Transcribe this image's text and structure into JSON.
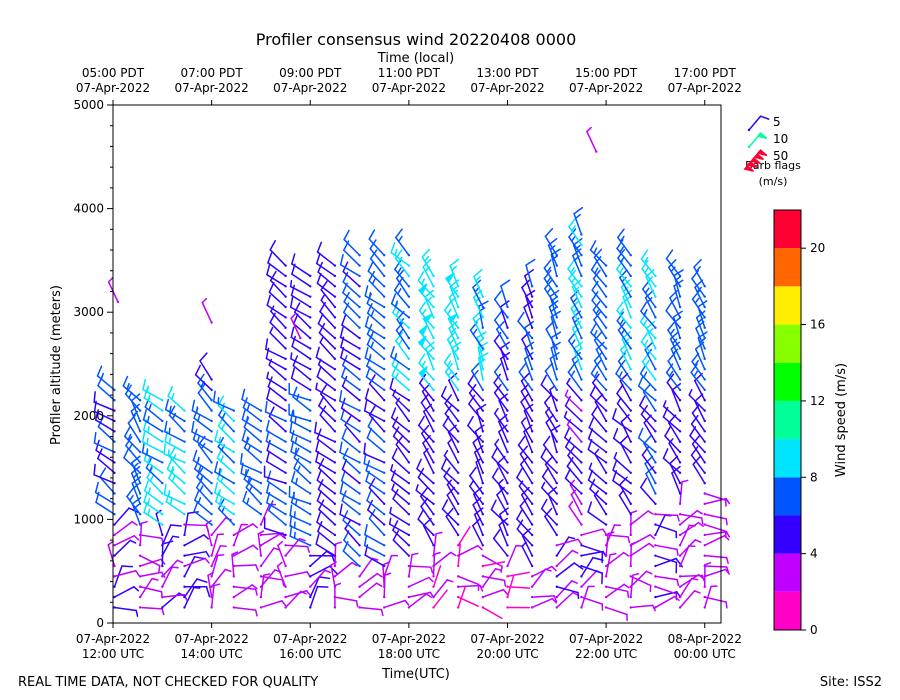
{
  "chart_data": {
    "type": "wind_barb_profile",
    "title": "Profiler consensus wind 20220408 0000",
    "top_axis_label": "Time (local)",
    "xlabel": "Time(UTC)",
    "ylabel": "Profiler altitude (meters)",
    "colorbar_label": "Wind speed (m/s)",
    "footer_left": "REAL TIME DATA, NOT CHECKED FOR QUALITY",
    "footer_right": "Site: ISS2",
    "x_hours": [
      12,
      14,
      16,
      18,
      20,
      22,
      24
    ],
    "x_range_hours": [
      12.0,
      24.33
    ],
    "bottom_ticks": [
      {
        "hour": 12,
        "line1": "07-Apr-2022",
        "line2": "12:00 UTC"
      },
      {
        "hour": 14,
        "line1": "07-Apr-2022",
        "line2": "14:00 UTC"
      },
      {
        "hour": 16,
        "line1": "07-Apr-2022",
        "line2": "16:00 UTC"
      },
      {
        "hour": 18,
        "line1": "07-Apr-2022",
        "line2": "18:00 UTC"
      },
      {
        "hour": 20,
        "line1": "07-Apr-2022",
        "line2": "20:00 UTC"
      },
      {
        "hour": 22,
        "line1": "07-Apr-2022",
        "line2": "22:00 UTC"
      },
      {
        "hour": 24,
        "line1": "08-Apr-2022",
        "line2": "00:00 UTC"
      }
    ],
    "top_ticks": [
      {
        "hour": 12,
        "line1": "05:00 PDT",
        "line2": "07-Apr-2022"
      },
      {
        "hour": 14,
        "line1": "07:00 PDT",
        "line2": "07-Apr-2022"
      },
      {
        "hour": 16,
        "line1": "09:00 PDT",
        "line2": "07-Apr-2022"
      },
      {
        "hour": 18,
        "line1": "11:00 PDT",
        "line2": "07-Apr-2022"
      },
      {
        "hour": 20,
        "line1": "13:00 PDT",
        "line2": "07-Apr-2022"
      },
      {
        "hour": 22,
        "line1": "15:00 PDT",
        "line2": "07-Apr-2022"
      },
      {
        "hour": 24,
        "line1": "17:00 PDT",
        "line2": "07-Apr-2022"
      }
    ],
    "y_ticks": [
      0,
      1000,
      2000,
      3000,
      4000,
      5000
    ],
    "ylim": [
      0,
      5000
    ],
    "colorbar_ticks": [
      0,
      4,
      8,
      12,
      16,
      20
    ],
    "colorbar_range": [
      0,
      22
    ],
    "colorbar_colors": [
      "#ff00c8",
      "#c000ff",
      "#3300ff",
      "#0055ff",
      "#00e5ff",
      "#00ff99",
      "#00ff00",
      "#88ff00",
      "#ffee00",
      "#ff6600",
      "#ff0033"
    ],
    "legend": {
      "entries": [
        {
          "speed": 5,
          "label": "5",
          "color": "#3300ff"
        },
        {
          "speed": 10,
          "label": "10",
          "color": "#00ff99"
        },
        {
          "speed": 50,
          "label": "50",
          "color": "#ff0033"
        }
      ],
      "caption1": "Barb flags",
      "caption2": "(m/s)"
    },
    "profiles": [
      {
        "t": 12.03,
        "top": 2300,
        "calm": 1000,
        "low": 4,
        "mid": 6,
        "up": 8,
        "dir": 300
      },
      {
        "t": 12.55,
        "top": 2150,
        "calm": 900,
        "low": 3,
        "mid": 7,
        "up": 6,
        "dir": 320
      },
      {
        "t": 13.0,
        "top": 2150,
        "calm": 900,
        "low": 4,
        "mid": 8,
        "up": 6,
        "dir": 300
      },
      {
        "t": 13.45,
        "top": 2100,
        "calm": 1000,
        "low": 4,
        "mid": 8,
        "up": 6,
        "dir": 300
      },
      {
        "t": 14.0,
        "top": 2350,
        "calm": 900,
        "low": 3,
        "mid": 7,
        "up": 6,
        "dir": 305
      },
      {
        "t": 14.45,
        "top": 2100,
        "calm": 900,
        "low": 3,
        "mid": 8,
        "up": 6,
        "dir": 300
      },
      {
        "t": 15.0,
        "top": 2100,
        "calm": 1000,
        "low": 3,
        "mid": 7,
        "up": 6,
        "dir": 300
      },
      {
        "t": 15.5,
        "top": 3500,
        "calm": 800,
        "low": 3,
        "mid": 6,
        "up": 5,
        "dir": 295
      },
      {
        "t": 16.0,
        "top": 3400,
        "calm": 700,
        "low": 4,
        "mid": 7,
        "up": 5,
        "dir": 295
      },
      {
        "t": 16.5,
        "top": 3500,
        "calm": 600,
        "low": 3,
        "mid": 5,
        "up": 5,
        "dir": 300
      },
      {
        "t": 17.0,
        "top": 3550,
        "calm": 500,
        "low": 3,
        "mid": 6,
        "up": 6,
        "dir": 300
      },
      {
        "t": 17.5,
        "top": 3550,
        "calm": 500,
        "low": 3,
        "mid": 6,
        "up": 7,
        "dir": 300
      },
      {
        "t": 18.0,
        "top": 3550,
        "calm": 600,
        "low": 3,
        "mid": 5,
        "up": 8,
        "dir": 305
      },
      {
        "t": 18.5,
        "top": 3400,
        "calm": 700,
        "low": 2,
        "mid": 5,
        "up": 9,
        "dir": 315
      },
      {
        "t": 19.0,
        "top": 3300,
        "calm": 800,
        "low": 2,
        "mid": 5,
        "up": 9,
        "dir": 320
      },
      {
        "t": 19.5,
        "top": 3200,
        "calm": 700,
        "low": 2,
        "mid": 5,
        "up": 8,
        "dir": 325
      },
      {
        "t": 20.0,
        "top": 3100,
        "calm": 600,
        "low": 2,
        "mid": 5,
        "up": 6,
        "dir": 320
      },
      {
        "t": 20.5,
        "top": 3300,
        "calm": 500,
        "low": 3,
        "mid": 5,
        "up": 6,
        "dir": 320
      },
      {
        "t": 21.0,
        "top": 3600,
        "calm": 800,
        "low": 4,
        "mid": 5,
        "up": 7,
        "dir": 325
      },
      {
        "t": 21.5,
        "top": 3800,
        "calm": 900,
        "low": 4,
        "mid": 4,
        "up": 8,
        "dir": 320
      },
      {
        "t": 22.0,
        "top": 3500,
        "calm": 900,
        "low": 3,
        "mid": 5,
        "up": 7,
        "dir": 315
      },
      {
        "t": 22.5,
        "top": 3600,
        "calm": 1000,
        "low": 3,
        "mid": 5,
        "up": 8,
        "dir": 315
      },
      {
        "t": 23.0,
        "top": 3400,
        "calm": 1100,
        "low": 4,
        "mid": 6,
        "up": 8,
        "dir": 315
      },
      {
        "t": 23.5,
        "top": 3400,
        "calm": 1200,
        "low": 3,
        "mid": 5,
        "up": 7,
        "dir": 320
      },
      {
        "t": 24.0,
        "top": 3300,
        "calm": 1300,
        "low": 3,
        "mid": 5,
        "up": 7,
        "dir": 320
      }
    ]
  }
}
